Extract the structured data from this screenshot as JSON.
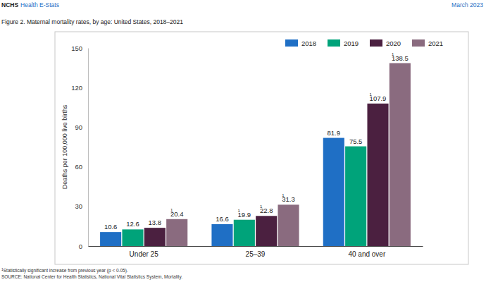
{
  "chart_data": {
    "type": "bar",
    "publisher": "NCHS",
    "series_name": "Health E-Stats",
    "date": "March 2023",
    "title": "Figure 2. Maternal mortality rates, by age: United States, 2018–2021",
    "y_label": "Deaths per 100,000 live births",
    "categories": [
      "Under 25",
      "25–39",
      "40 and over"
    ],
    "series": [
      {
        "name": "2018",
        "color": "#1f6fc5",
        "values": [
          10.6,
          16.6,
          81.9
        ],
        "footnote_marks": [
          null,
          null,
          null
        ]
      },
      {
        "name": "2019",
        "color": "#00a37a",
        "values": [
          12.6,
          19.9,
          75.5
        ],
        "footnote_marks": [
          null,
          "1",
          null
        ]
      },
      {
        "name": "2020",
        "color": "#4b2040",
        "values": [
          13.8,
          22.8,
          107.9
        ],
        "footnote_marks": [
          null,
          "1",
          "1"
        ]
      },
      {
        "name": "2021",
        "color": "#8a6b7f",
        "values": [
          20.4,
          31.3,
          138.5
        ],
        "footnote_marks": [
          "1",
          "1",
          "1"
        ]
      }
    ],
    "ylim": [
      0,
      150
    ],
    "yticks": [
      0,
      30,
      60,
      90,
      120,
      150
    ],
    "grid": false,
    "legend": "top-right",
    "data_labels": true,
    "footnotes": [
      {
        "mark": "1",
        "text": "Statistically significant increase from previous year (p < 0.05)."
      }
    ],
    "source": "SOURCE: National Center for Health Statistics, National Vital Statistics System, Mortality."
  }
}
